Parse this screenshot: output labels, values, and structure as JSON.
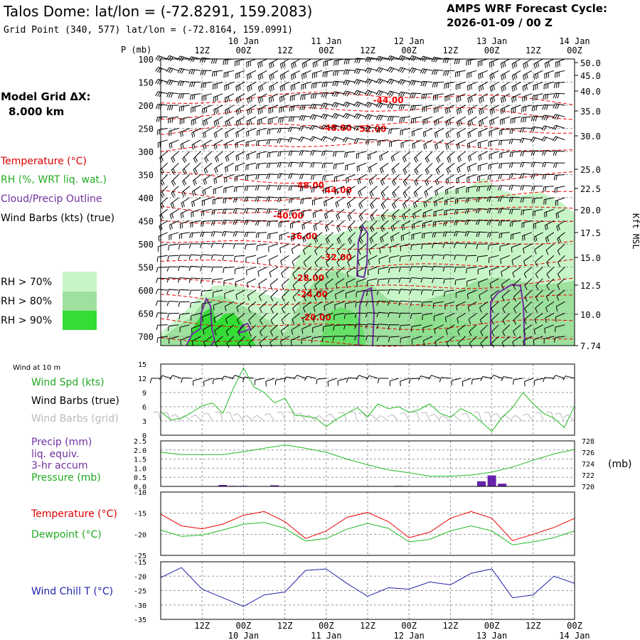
{
  "header": {
    "title": "Talos Dome:  lat/lon = (-72.8291, 159.2083)",
    "grid_point": "Grid Point (340, 577) lat/lon = (-72.8164, 159.0991)",
    "cycle_label": "AMPS WRF Forecast Cycle:",
    "cycle_value": "2026-01-09 / 00  Z",
    "model_grid_label": "Model Grid ΔX:",
    "model_grid_value": "8.000 km"
  },
  "time_axis": {
    "hour_labels": [
      "12Z",
      "00Z",
      "12Z",
      "00Z",
      "12Z",
      "00Z",
      "12Z",
      "00Z",
      "12Z",
      "00Z"
    ],
    "day_labels": [
      "10 Jan",
      "11 Jan",
      "12 Jan",
      "13 Jan",
      "14 Jan"
    ]
  },
  "legend": {
    "temperature": "Temperature (°C)",
    "rh": "RH (%, WRT liq. wat.)",
    "cloud": "Cloud/Precip Outline",
    "wind_barbs": "Wind Barbs (kts) (true)",
    "rh70": "RH > 70%",
    "rh80": "RH > 80%",
    "rh90": "RH > 90%",
    "rh_colors": [
      "#c8f5c8",
      "#9ee09e",
      "#33dd33"
    ]
  },
  "panels": {
    "cross": {
      "yunit": "P (mb)",
      "yunit_right": "Kft MSL",
      "pressure_ticks": [
        "100",
        "150",
        "200",
        "250",
        "300",
        "350",
        "400",
        "450",
        "500",
        "550",
        "600",
        "650",
        "700"
      ],
      "height_ticks": [
        "50.0",
        "45.0",
        "40.0",
        "35.0",
        "30.0",
        "25.0",
        "22.5",
        "20.0",
        "17.5",
        "15.0",
        "12.5",
        "10.0",
        "7.74"
      ]
    },
    "wind": {
      "title": "Wind at 10 m",
      "legend_speed": "Wind Spd (kts)",
      "legend_true": "Wind Barbs (true)",
      "legend_grid": "Wind Barbs (grid)",
      "ylim": [
        0,
        15
      ],
      "yticks": [
        "0",
        "3",
        "6",
        "9",
        "12",
        "15"
      ]
    },
    "precip": {
      "legend_precip": "Precip (mm)",
      "legend_precip2": "liq. equiv.",
      "legend_precip3": "3-hr accum",
      "legend_pressure": "Pressure (mb)",
      "yunit_right": "(mb)",
      "ylim": [
        0,
        2.5
      ],
      "yticks": [
        "0.0",
        "0.5",
        "1.0",
        "1.5",
        "2.0",
        "2.5"
      ],
      "ylim_right": [
        720,
        728
      ],
      "yticks_right": [
        "720",
        "722",
        "724",
        "726",
        "728"
      ]
    },
    "temp": {
      "legend_temp": "Temperature (°C)",
      "legend_dew": "Dewpoint (°C)",
      "ylim": [
        -25,
        -10
      ],
      "yticks": [
        "-25",
        "-20",
        "-15",
        "-10"
      ]
    },
    "chill": {
      "legend": "Wind Chill T (°C)",
      "ylim": [
        -35,
        -15
      ],
      "yticks": [
        "-35",
        "-30",
        "-25",
        "-20",
        "-15"
      ]
    }
  },
  "chart_data": [
    {
      "type": "area",
      "name": "cross-section",
      "ylim": [
        700,
        100
      ],
      "temperature_labels": [
        {
          "text": "-44.00",
          "t": 66,
          "p": 195
        },
        {
          "text": "-48.00",
          "t": 51,
          "p": 255
        },
        {
          "text": "-52.00",
          "t": 61,
          "p": 258
        },
        {
          "text": "-48.00",
          "t": 43,
          "p": 380
        },
        {
          "text": "-44.00",
          "t": 51,
          "p": 390
        },
        {
          "text": "-40.00",
          "t": 37,
          "p": 445
        },
        {
          "text": "-36.00",
          "t": 41,
          "p": 490
        },
        {
          "text": "-32.00",
          "t": 51,
          "p": 535
        },
        {
          "text": "-28.00",
          "t": 43,
          "p": 580
        },
        {
          "text": "-24.00",
          "t": 44,
          "p": 615
        },
        {
          "text": "-20.00",
          "t": 45,
          "p": 665
        }
      ]
    },
    {
      "type": "line",
      "name": "wind-speed-10m",
      "x_hours": [
        0,
        3,
        6,
        9,
        12,
        15,
        18,
        21,
        24,
        27,
        30,
        33,
        36,
        39,
        42,
        45,
        48,
        51,
        54,
        57,
        60,
        63,
        66,
        69,
        72,
        75,
        78,
        81,
        84,
        87,
        90,
        93,
        96,
        99,
        102,
        105,
        108,
        111,
        114,
        117,
        120
      ],
      "values": [
        5.0,
        3.2,
        3.6,
        4.8,
        6.2,
        6.8,
        4.6,
        9.8,
        14.2,
        10.2,
        9.0,
        6.8,
        7.8,
        4.2,
        4.0,
        3.6,
        1.8,
        3.4,
        4.6,
        5.8,
        3.9,
        6.6,
        5.6,
        6.0,
        4.8,
        5.4,
        6.6,
        4.6,
        3.8,
        5.6,
        4.6,
        2.8,
        0.8,
        3.8,
        5.8,
        9.0,
        6.6,
        4.6,
        3.6,
        1.6,
        6.2
      ]
    },
    {
      "type": "line",
      "name": "pressure",
      "x_hours": [
        0,
        6,
        12,
        18,
        24,
        30,
        36,
        42,
        48,
        54,
        60,
        66,
        72,
        78,
        84,
        90,
        96,
        102,
        108,
        114,
        120
      ],
      "values": [
        726.0,
        725.6,
        725.6,
        725.6,
        726.1,
        726.7,
        727.3,
        726.7,
        726.0,
        724.8,
        723.8,
        722.9,
        722.4,
        721.8,
        721.8,
        722.0,
        722.5,
        723.4,
        724.6,
        725.7,
        726.5
      ]
    },
    {
      "type": "bar",
      "name": "precip-3hr",
      "x_hours": [
        18,
        21,
        24,
        33,
        69,
        93,
        96,
        99
      ],
      "values": [
        0.08,
        0.03,
        0.03,
        0.06,
        0.03,
        0.28,
        0.6,
        0.15
      ]
    },
    {
      "type": "line",
      "name": "temperature",
      "x_hours": [
        0,
        6,
        12,
        18,
        24,
        30,
        36,
        42,
        48,
        54,
        60,
        66,
        72,
        78,
        84,
        90,
        96,
        102,
        108,
        114,
        120
      ],
      "values": [
        -15.2,
        -18.0,
        -18.7,
        -17.6,
        -15.5,
        -14.6,
        -17.0,
        -21.0,
        -19.2,
        -16.0,
        -14.8,
        -17.0,
        -20.8,
        -19.5,
        -16.2,
        -14.6,
        -16.2,
        -21.5,
        -20.0,
        -18.4,
        -16.2
      ]
    },
    {
      "type": "line",
      "name": "dewpoint",
      "x_hours": [
        0,
        6,
        12,
        18,
        24,
        30,
        36,
        42,
        48,
        54,
        60,
        66,
        72,
        78,
        84,
        90,
        96,
        102,
        108,
        114,
        120
      ],
      "values": [
        -19.0,
        -20.5,
        -20.2,
        -19.0,
        -17.6,
        -17.2,
        -18.6,
        -21.6,
        -21.0,
        -18.8,
        -17.4,
        -18.6,
        -21.8,
        -21.2,
        -19.2,
        -18.0,
        -19.2,
        -22.5,
        -21.8,
        -20.8,
        -19.2
      ]
    },
    {
      "type": "line",
      "name": "wind-chill",
      "x_hours": [
        0,
        6,
        12,
        18,
        24,
        30,
        36,
        42,
        48,
        54,
        60,
        66,
        72,
        78,
        84,
        90,
        96,
        102,
        108,
        114,
        120
      ],
      "values": [
        -20.5,
        -17.0,
        -24.5,
        -27.5,
        -30.5,
        -26.5,
        -25.5,
        -18.0,
        -17.5,
        -22.5,
        -27.0,
        -24.0,
        -24.5,
        -22.0,
        -23.0,
        -19.0,
        -17.5,
        -27.5,
        -26.5,
        -20.0,
        -22.5
      ]
    }
  ]
}
